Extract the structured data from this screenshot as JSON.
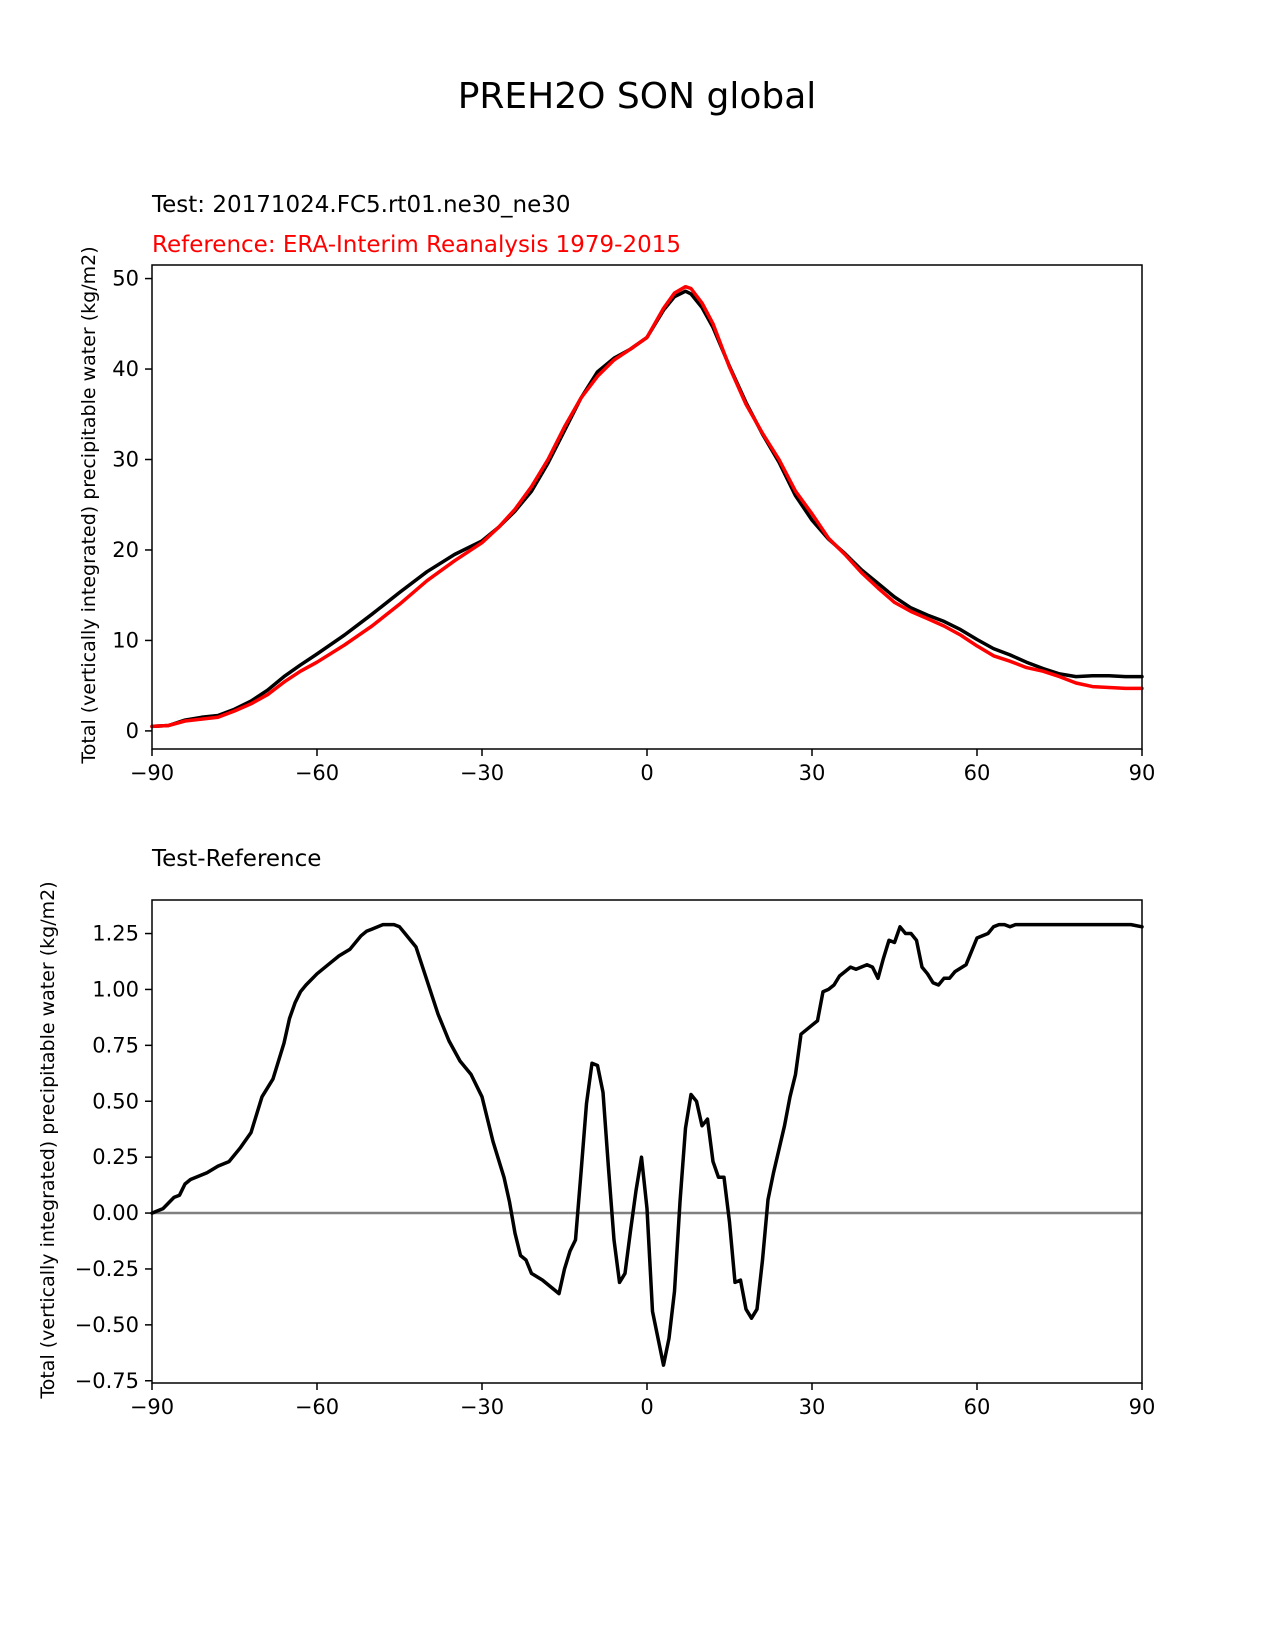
{
  "figure": {
    "suptitle": "PREH2O SON global"
  },
  "colors": {
    "test": "#000000",
    "reference": "#ff0000",
    "zero_line": "#808080",
    "axes": "#000000"
  },
  "chart_data": [
    {
      "type": "line",
      "title_test": "Test: 20171024.FC5.rt01.ne30_ne30",
      "title_reference": "Reference: ERA-Interim Reanalysis 1979-2015",
      "xlabel": "",
      "ylabel": "Total (vertically integrated) precipitable water (kg/m2)",
      "xlim": [
        -90,
        90
      ],
      "ylim": [
        -2,
        51.5
      ],
      "xticks": [
        -90,
        -60,
        -30,
        0,
        30,
        60,
        90
      ],
      "xtick_labels": [
        "−90",
        "−60",
        "−30",
        "0",
        "30",
        "60",
        "90"
      ],
      "yticks": [
        0,
        10,
        20,
        30,
        40,
        50
      ],
      "ytick_labels": [
        "0",
        "10",
        "20",
        "30",
        "40",
        "50"
      ],
      "series": [
        {
          "name": "Test",
          "x": [
            -90,
            -87,
            -84,
            -81,
            -78,
            -75,
            -72,
            -69,
            -66,
            -63,
            -60,
            -55,
            -50,
            -45,
            -40,
            -35,
            -30,
            -27,
            -24,
            -21,
            -18,
            -15,
            -12,
            -9,
            -6,
            -3,
            0,
            3,
            5,
            7,
            8,
            10,
            12,
            15,
            18,
            21,
            24,
            27,
            30,
            33,
            36,
            39,
            42,
            45,
            48,
            51,
            54,
            57,
            60,
            63,
            66,
            69,
            72,
            75,
            78,
            81,
            84,
            87,
            90
          ],
          "values": [
            0.5,
            0.6,
            1.2,
            1.5,
            1.7,
            2.4,
            3.3,
            4.5,
            6.0,
            7.3,
            8.5,
            10.6,
            12.9,
            15.3,
            17.6,
            19.5,
            21.0,
            22.5,
            24.3,
            26.5,
            29.6,
            33.2,
            36.8,
            39.7,
            41.2,
            42.2,
            43.5,
            46.5,
            48.0,
            48.6,
            48.3,
            46.8,
            44.6,
            40.3,
            36.3,
            32.8,
            29.7,
            26.0,
            23.3,
            21.2,
            19.6,
            17.8,
            16.3,
            14.8,
            13.6,
            12.8,
            12.1,
            11.2,
            10.1,
            9.1,
            8.4,
            7.6,
            6.9,
            6.3,
            6.0,
            6.1,
            6.1,
            6.0,
            6.0
          ]
        },
        {
          "name": "Reference",
          "x": [
            -90,
            -87,
            -84,
            -81,
            -78,
            -75,
            -72,
            -69,
            -66,
            -63,
            -60,
            -55,
            -50,
            -45,
            -40,
            -35,
            -30,
            -27,
            -24,
            -21,
            -18,
            -15,
            -12,
            -9,
            -6,
            -3,
            0,
            3,
            5,
            7,
            8,
            10,
            12,
            15,
            18,
            21,
            24,
            27,
            30,
            33,
            36,
            39,
            42,
            45,
            48,
            51,
            54,
            57,
            60,
            63,
            66,
            69,
            72,
            75,
            78,
            81,
            84,
            87,
            90
          ],
          "values": [
            0.5,
            0.6,
            1.1,
            1.3,
            1.5,
            2.2,
            3.0,
            4.0,
            5.4,
            6.6,
            7.6,
            9.5,
            11.6,
            14.0,
            16.6,
            18.8,
            20.8,
            22.5,
            24.5,
            27.0,
            30.0,
            33.6,
            36.8,
            39.2,
            41.0,
            42.2,
            43.5,
            46.7,
            48.4,
            49.1,
            48.9,
            47.3,
            45.0,
            40.2,
            36.1,
            32.9,
            30.0,
            26.5,
            24.0,
            21.3,
            19.5,
            17.5,
            15.8,
            14.2,
            13.2,
            12.4,
            11.6,
            10.6,
            9.4,
            8.3,
            7.7,
            7.0,
            6.6,
            6.0,
            5.3,
            4.9,
            4.8,
            4.7,
            4.7
          ]
        }
      ]
    },
    {
      "type": "line",
      "title": "Test-Reference",
      "xlabel": "",
      "ylabel": "Total (vertically integrated) precipitable water (kg/m2)",
      "xlim": [
        -90,
        90
      ],
      "ylim": [
        -0.76,
        1.4
      ],
      "xticks": [
        -90,
        -60,
        -30,
        0,
        30,
        60,
        90
      ],
      "xtick_labels": [
        "−90",
        "−60",
        "−30",
        "0",
        "30",
        "60",
        "90"
      ],
      "yticks": [
        -0.75,
        -0.5,
        -0.25,
        0.0,
        0.25,
        0.5,
        0.75,
        1.0,
        1.25
      ],
      "ytick_labels": [
        "−0.75",
        "−0.50",
        "−0.25",
        "0.00",
        "0.25",
        "0.50",
        "0.75",
        "1.00",
        "1.25"
      ],
      "hline": 0,
      "series": [
        {
          "name": "Test-Reference",
          "x": [
            -90,
            -88,
            -86,
            -85,
            -84,
            -83,
            -82,
            -80,
            -78,
            -76,
            -74,
            -72,
            -70,
            -68,
            -66,
            -65,
            -64,
            -63,
            -62,
            -60,
            -58,
            -56,
            -54,
            -52,
            -51,
            -50,
            -48,
            -46,
            -45,
            -44,
            -42,
            -40,
            -38,
            -36,
            -34,
            -32,
            -30,
            -28,
            -26,
            -25,
            -24,
            -23,
            -22,
            -21,
            -19,
            -18,
            -16,
            -15,
            -14,
            -13,
            -12,
            -11,
            -10,
            -9,
            -8,
            -7,
            -6,
            -5,
            -4,
            -3,
            -2,
            -1,
            0,
            1,
            3,
            4,
            5,
            6,
            7,
            8,
            9,
            10,
            11,
            12,
            13,
            14,
            15,
            16,
            17,
            18,
            19,
            20,
            21,
            22,
            23,
            25,
            26,
            27,
            28,
            30,
            31,
            32,
            33,
            34,
            35,
            36,
            37,
            38,
            40,
            41,
            42,
            43,
            44,
            45,
            46,
            47,
            48,
            49,
            50,
            51,
            52,
            53,
            54,
            55,
            56,
            58,
            59,
            60,
            62,
            63,
            64,
            65,
            66,
            67,
            68,
            69,
            70,
            71,
            72,
            73,
            74,
            76,
            78,
            80,
            82,
            84,
            86,
            88,
            90
          ],
          "values": [
            0.0,
            0.02,
            0.07,
            0.08,
            0.13,
            0.15,
            0.16,
            0.18,
            0.21,
            0.23,
            0.29,
            0.36,
            0.52,
            0.6,
            0.76,
            0.87,
            0.94,
            0.99,
            1.02,
            1.07,
            1.11,
            1.15,
            1.18,
            1.24,
            1.26,
            1.27,
            1.29,
            1.29,
            1.28,
            1.25,
            1.19,
            1.04,
            0.89,
            0.77,
            0.68,
            0.62,
            0.52,
            0.32,
            0.16,
            0.05,
            -0.09,
            -0.19,
            -0.21,
            -0.27,
            -0.3,
            -0.32,
            -0.36,
            -0.25,
            -0.17,
            -0.12,
            0.18,
            0.49,
            0.67,
            0.66,
            0.54,
            0.2,
            -0.12,
            -0.31,
            -0.27,
            -0.08,
            0.1,
            0.25,
            0.02,
            -0.44,
            -0.68,
            -0.56,
            -0.35,
            0.05,
            0.38,
            0.53,
            0.5,
            0.39,
            0.42,
            0.23,
            0.16,
            0.16,
            -0.04,
            -0.31,
            -0.3,
            -0.43,
            -0.47,
            -0.43,
            -0.21,
            0.06,
            0.18,
            0.39,
            0.52,
            0.62,
            0.8,
            0.84,
            0.86,
            0.99,
            1.0,
            1.02,
            1.06,
            1.08,
            1.1,
            1.09,
            1.11,
            1.1,
            1.05,
            1.14,
            1.22,
            1.21,
            1.28,
            1.25,
            1.25,
            1.22,
            1.1,
            1.07,
            1.03,
            1.02,
            1.05,
            1.05,
            1.08,
            1.11,
            1.17,
            1.23,
            1.25,
            1.28,
            1.29,
            1.29,
            1.28,
            1.29,
            1.29,
            1.29,
            1.29,
            1.29,
            1.29,
            1.29,
            1.29,
            1.29,
            1.29,
            1.29,
            1.29,
            1.29,
            1.29,
            1.29,
            1.28
          ]
        }
      ]
    }
  ]
}
